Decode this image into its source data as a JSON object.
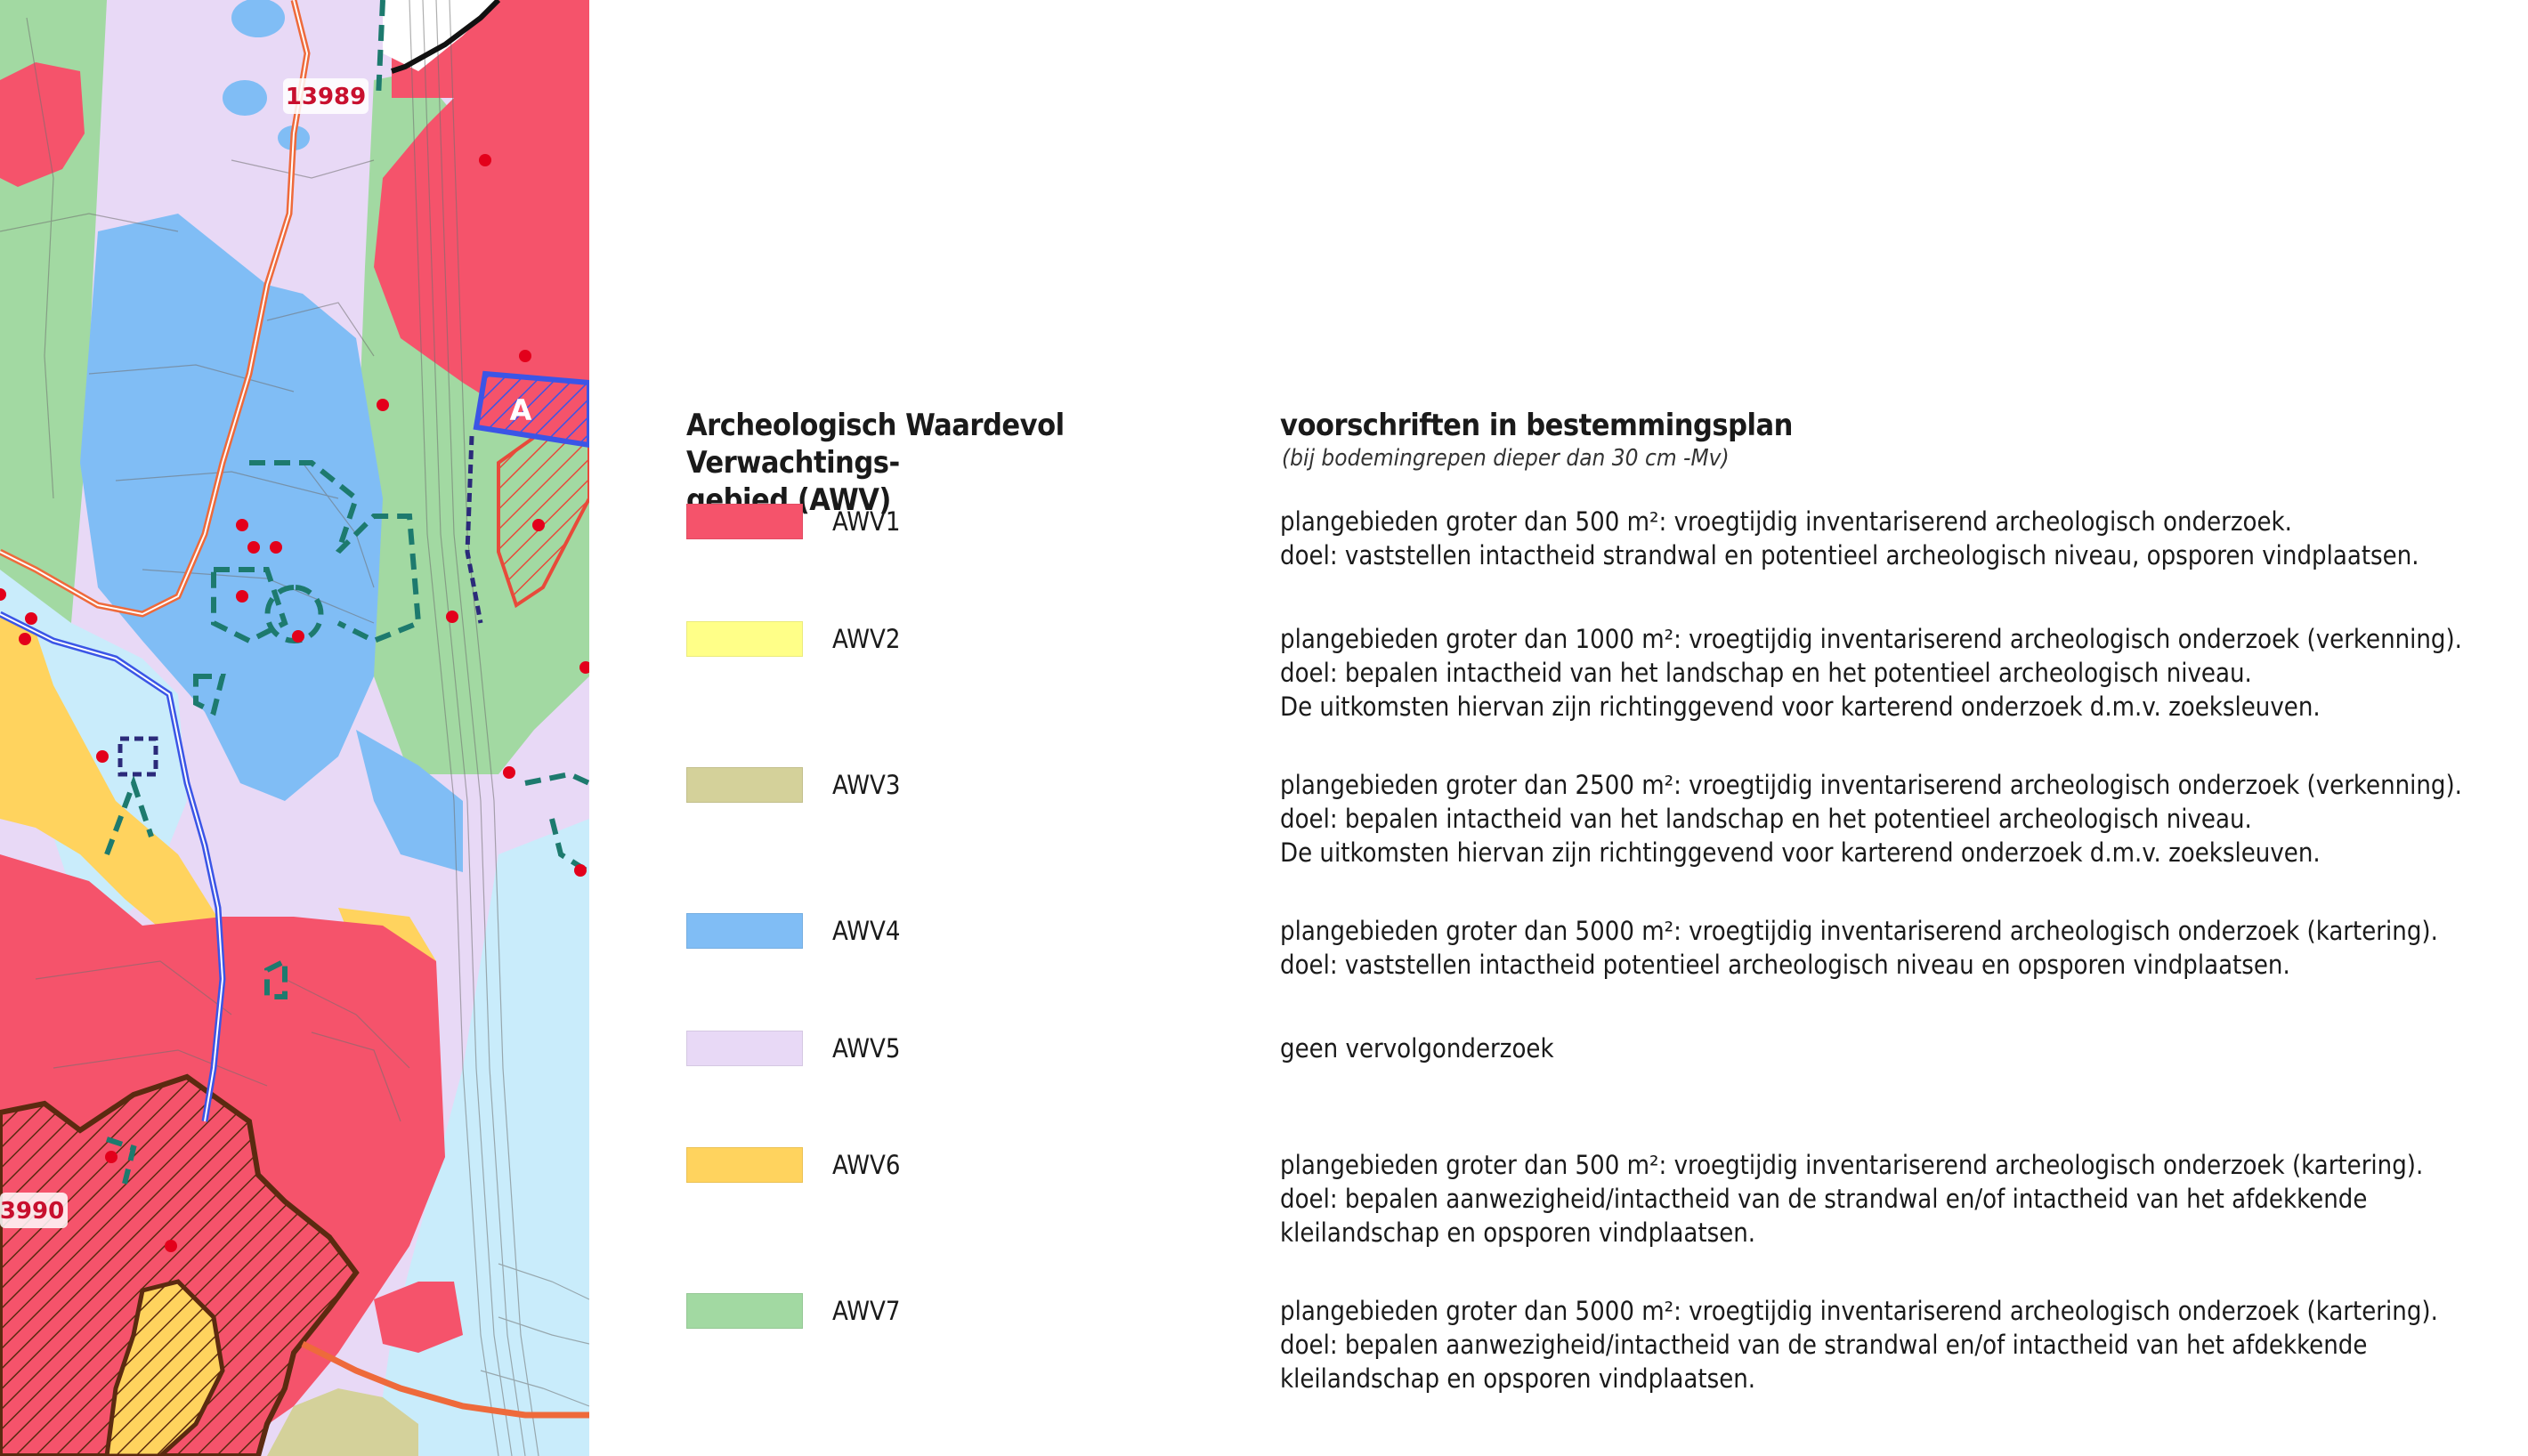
{
  "map": {
    "labels": {
      "plan_top": "13989",
      "plan_left": "3990",
      "zone_a": "A"
    },
    "colors": {
      "water": "#c9ecfb",
      "base": "#f3f3f3",
      "road_orange": "#ee6a3b",
      "road_blue": "#3b55e6",
      "dashed_teal": "#1d7a6e",
      "hatch_brown": "#5b2a10",
      "dot_red": "#e3001b"
    }
  },
  "legend": {
    "title": "Archeologisch Waardevol Verwachtings-gebied (AWV)",
    "title_line1": "Archeologisch Waardevol Verwachtings-",
    "title_line2": "gebied (AWV)",
    "rules_heading": "voorschriften in bestemmingsplan",
    "rules_subheading": "(bij bodemingrepen dieper dan 30 cm -Mv)",
    "items": [
      {
        "code": "AWV1",
        "color": "#f5536b",
        "lines": [
          "plangebieden groter dan 500 m²: vroegtijdig inventariserend archeologisch onderzoek.",
          "doel: vaststellen intactheid strandwal en potentieel archeologisch niveau, opsporen vindplaatsen."
        ]
      },
      {
        "code": "AWV2",
        "color": "#ffff88",
        "lines": [
          "plangebieden groter dan 1000 m²: vroegtijdig inventariserend archeologisch onderzoek (verkenning).",
          "doel: bepalen intactheid van het landschap en het potentieel archeologisch niveau.",
          "De uitkomsten hiervan zijn richtinggevend voor karterend onderzoek d.m.v. zoeksleuven."
        ]
      },
      {
        "code": "AWV3",
        "color": "#d4d19a",
        "lines": [
          "plangebieden groter dan 2500 m²: vroegtijdig inventariserend archeologisch onderzoek (verkenning).",
          "doel: bepalen intactheid van het landschap en het potentieel archeologisch niveau.",
          "De uitkomsten hiervan zijn richtinggevend voor karterend onderzoek d.m.v. zoeksleuven."
        ]
      },
      {
        "code": "AWV4",
        "color": "#80bdf5",
        "lines": [
          "plangebieden groter dan 5000 m²: vroegtijdig inventariserend archeologisch onderzoek (kartering).",
          "doel: vaststellen intactheid potentieel archeologisch niveau en opsporen vindplaatsen."
        ]
      },
      {
        "code": "AWV5",
        "color": "#e8d9f6",
        "lines": [
          "geen vervolgonderzoek"
        ]
      },
      {
        "code": "AWV6",
        "color": "#ffd35e",
        "lines": [
          "plangebieden groter dan 500 m²: vroegtijdig inventariserend archeologisch onderzoek (kartering).",
          "doel: bepalen aanwezigheid/intactheid van de strandwal en/of intactheid van het afdekkende",
          "kleilandschap en opsporen vindplaatsen."
        ]
      },
      {
        "code": "AWV7",
        "color": "#a2d9a2",
        "lines": [
          "plangebieden groter dan 5000 m²: vroegtijdig inventariserend archeologisch onderzoek (kartering).",
          "doel: bepalen aanwezigheid/intactheid van de strandwal en/of intactheid van het afdekkende",
          "kleilandschap en opsporen vindplaatsen."
        ]
      }
    ]
  }
}
